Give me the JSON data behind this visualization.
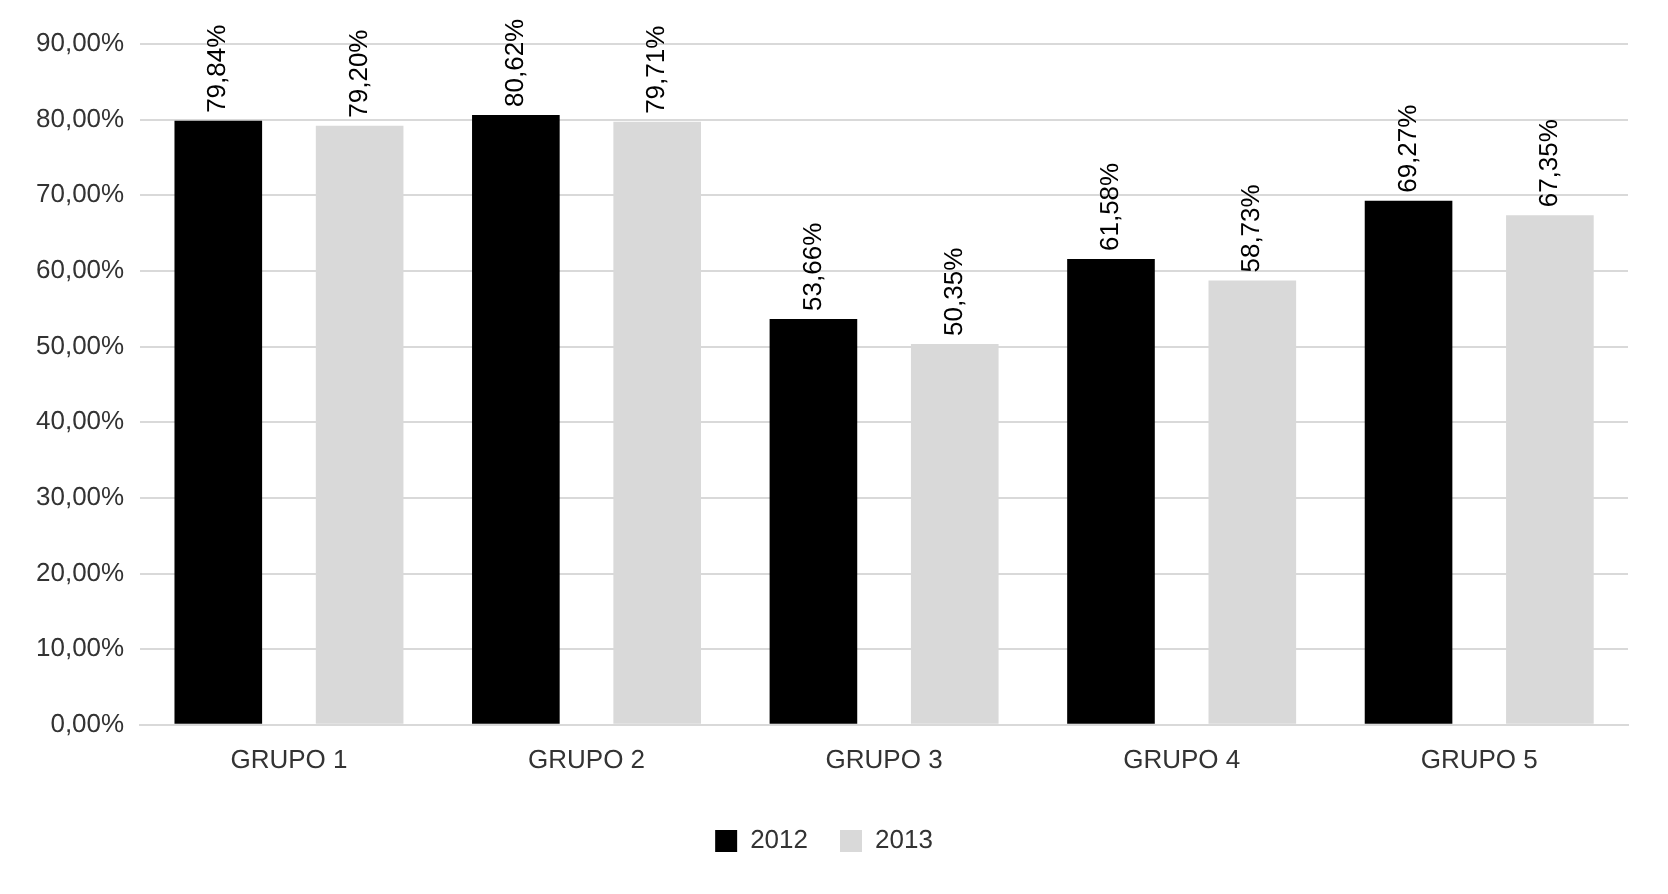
{
  "chart_data": {
    "type": "bar",
    "categories": [
      "GRUPO 1",
      "GRUPO 2",
      "GRUPO 3",
      "GRUPO 4",
      "GRUPO 5"
    ],
    "series": [
      {
        "name": "2012",
        "color": "#000000",
        "values": [
          79.84,
          80.62,
          53.66,
          61.58,
          69.27
        ],
        "value_labels": [
          "79,84%",
          "80,62%",
          "53,66%",
          "61,58%",
          "69,27%"
        ]
      },
      {
        "name": "2013",
        "color": "#d9d9d9",
        "values": [
          79.2,
          79.71,
          50.35,
          58.73,
          67.35
        ],
        "value_labels": [
          "79,20%",
          "79,71%",
          "50,35%",
          "58,73%",
          "67,35%"
        ]
      }
    ],
    "ylim": [
      0,
      90
    ],
    "yticks": [
      {
        "value": 0,
        "label": "0,00%"
      },
      {
        "value": 10,
        "label": "10,00%"
      },
      {
        "value": 20,
        "label": "20,00%"
      },
      {
        "value": 30,
        "label": "30,00%"
      },
      {
        "value": 40,
        "label": "40,00%"
      },
      {
        "value": 50,
        "label": "50,00%"
      },
      {
        "value": 60,
        "label": "60,00%"
      },
      {
        "value": 70,
        "label": "70,00%"
      },
      {
        "value": 80,
        "label": "80,00%"
      },
      {
        "value": 90,
        "label": "90,00%"
      }
    ],
    "grid": "y",
    "legend": "bottom"
  }
}
